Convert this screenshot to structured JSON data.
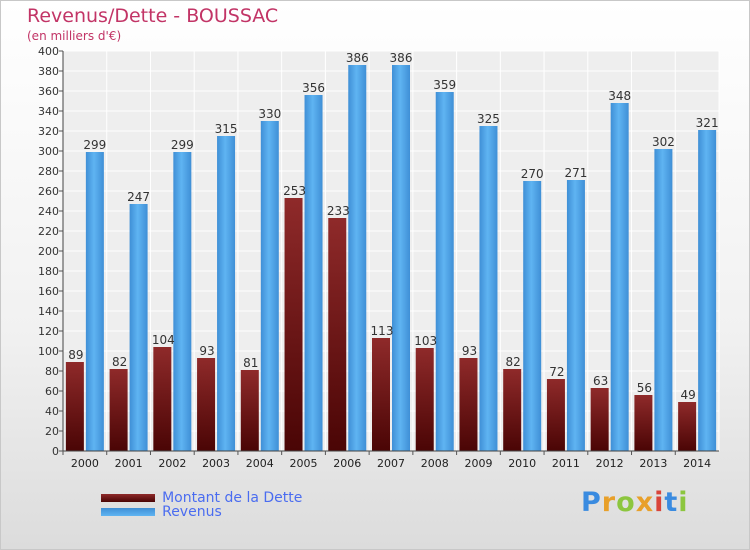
{
  "chart_data": {
    "type": "bar",
    "title": "Revenus/Dette - BOUSSAC",
    "subtitle": "(en milliers d'€)",
    "categories": [
      "2000",
      "2001",
      "2002",
      "2003",
      "2004",
      "2005",
      "2006",
      "2007",
      "2008",
      "2009",
      "2010",
      "2011",
      "2012",
      "2013",
      "2014"
    ],
    "series": [
      {
        "name": "Montant de la Dette",
        "color": "#7a1515",
        "values": [
          89,
          82,
          104,
          93,
          81,
          253,
          233,
          113,
          103,
          93,
          82,
          72,
          63,
          56,
          49
        ]
      },
      {
        "name": "Revenus",
        "color": "#4aa3e6",
        "values": [
          299,
          247,
          299,
          315,
          330,
          356,
          386,
          386,
          359,
          325,
          270,
          271,
          348,
          302,
          321
        ]
      }
    ],
    "ylim": [
      0,
      400
    ],
    "ytick_step": 20,
    "grid": true,
    "legend_position": "bottom-left",
    "xlabel": "",
    "ylabel": ""
  },
  "logo": {
    "letters": [
      "P",
      "r",
      "o",
      "x",
      "i",
      "t",
      "i"
    ],
    "colors": [
      "#3a8be0",
      "#e8a02a",
      "#8cc63e",
      "#e8a02a",
      "#d9443a",
      "#3a8be0",
      "#8cc63e"
    ]
  }
}
